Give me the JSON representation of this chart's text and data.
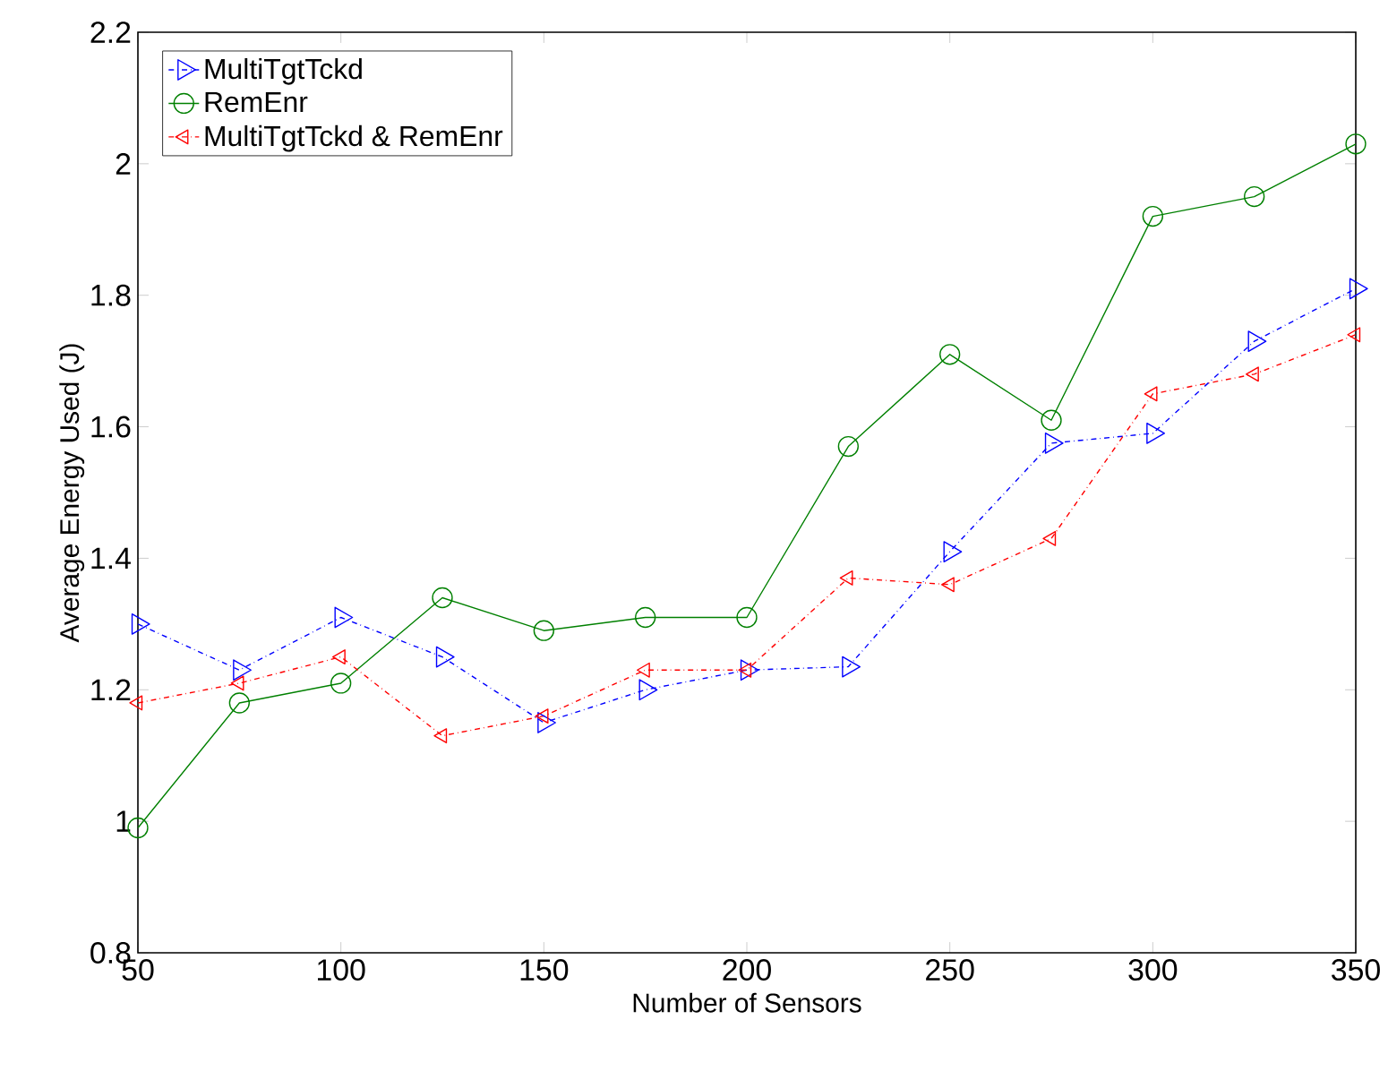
{
  "chart_data": {
    "type": "line",
    "xlabel": "Number of Sensors",
    "ylabel": "Average Energy Used (J)",
    "x": [
      50,
      75,
      100,
      125,
      150,
      175,
      200,
      225,
      250,
      275,
      300,
      325,
      350
    ],
    "series": [
      {
        "name": "MultiTgtTckd",
        "color": "#0000ff",
        "marker": "triangle-right",
        "line_style": "dashdot",
        "values": [
          1.3,
          1.23,
          1.31,
          1.25,
          1.15,
          1.2,
          1.23,
          1.235,
          1.41,
          1.575,
          1.59,
          1.73,
          1.81
        ]
      },
      {
        "name": "RemEnr",
        "color": "#008000",
        "marker": "circle",
        "line_style": "solid",
        "values": [
          0.99,
          1.18,
          1.21,
          1.34,
          1.29,
          1.31,
          1.31,
          1.57,
          1.71,
          1.61,
          1.92,
          1.95,
          2.03
        ]
      },
      {
        "name": "MultiTgtTckd & RemEnr",
        "color": "#ff0000",
        "marker": "triangle-left",
        "line_style": "dashdot",
        "values": [
          1.18,
          1.21,
          1.25,
          1.13,
          1.16,
          1.23,
          1.23,
          1.37,
          1.36,
          1.43,
          1.65,
          1.68,
          1.74
        ]
      }
    ],
    "xlim": [
      50,
      350
    ],
    "ylim": [
      0.8,
      2.2
    ],
    "xticks": [
      50,
      100,
      150,
      200,
      250,
      300,
      350
    ],
    "yticks": [
      0.8,
      1,
      1.2,
      1.4,
      1.6,
      1.8,
      2,
      2.2
    ],
    "legend": "top left",
    "grid": false
  }
}
